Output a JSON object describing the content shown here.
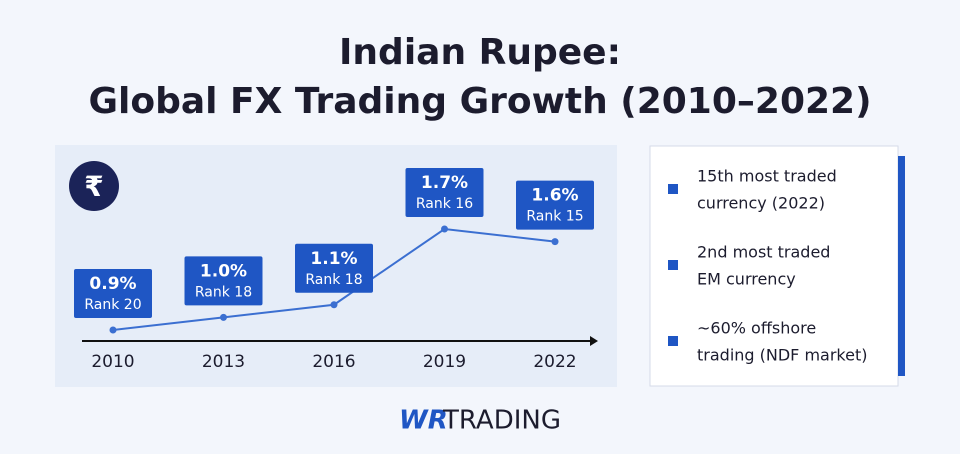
{
  "header": {
    "title_lines": [
      "Indian Rupee:",
      "Global FX Trading Growth (2010–2022)"
    ]
  },
  "chart_data": {
    "type": "line",
    "icon": "₹",
    "categories": [
      "2010",
      "2013",
      "2016",
      "2019",
      "2022"
    ],
    "values": [
      0.9,
      1.0,
      1.1,
      1.7,
      1.6
    ],
    "value_labels": [
      "0.9%",
      "1.0%",
      "1.1%",
      "1.7%",
      "1.6%"
    ],
    "ranks": [
      "Rank 20",
      "Rank 18",
      "Rank 18",
      "Rank 16",
      "Rank 15"
    ],
    "color": "#3b6fd1",
    "label_color": "#1f56c4"
  },
  "highlights": [
    {
      "lines": [
        "15th most traded",
        "currency (2022)"
      ]
    },
    {
      "lines": [
        "2nd most traded",
        "EM currency"
      ]
    },
    {
      "lines": [
        "~60% offshore",
        "trading (NDF market)"
      ]
    }
  ],
  "brand": {
    "mark": "WR",
    "name": "TRADING"
  }
}
